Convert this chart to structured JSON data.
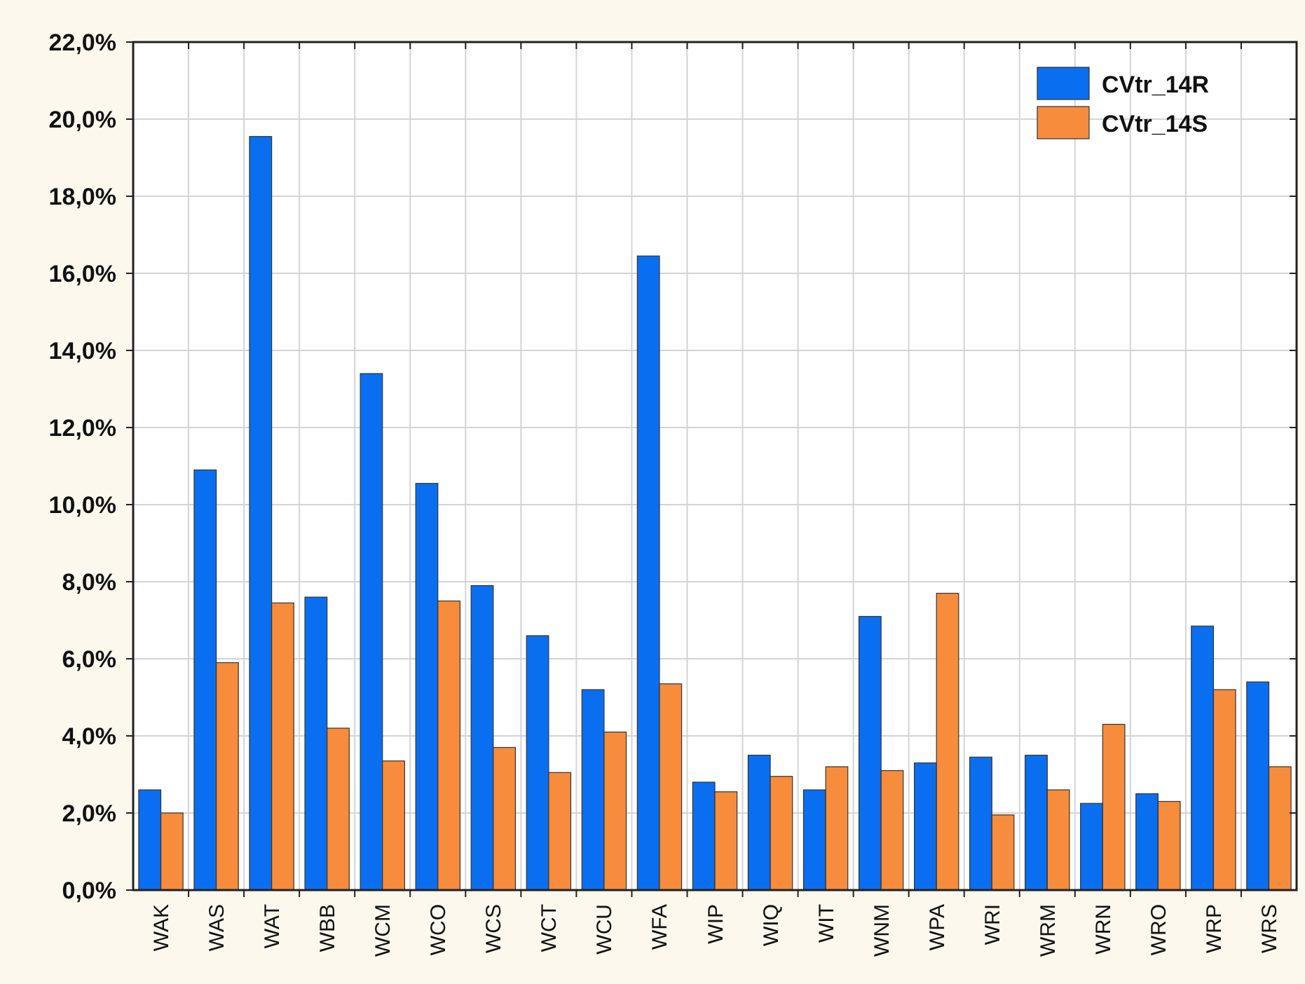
{
  "chart_data": {
    "type": "bar",
    "categories": [
      "WAK",
      "WAS",
      "WAT",
      "WBB",
      "WCM",
      "WCO",
      "WCS",
      "WCT",
      "WCU",
      "WFA",
      "WIP",
      "WIQ",
      "WIT",
      "WNM",
      "WPA",
      "WRI",
      "WRM",
      "WRN",
      "WRO",
      "WRP",
      "WRS"
    ],
    "series": [
      {
        "name": "CVtr_14R",
        "color": "#0a6ef0",
        "values": [
          2.6,
          10.9,
          19.55,
          7.6,
          13.4,
          10.55,
          7.9,
          6.6,
          5.2,
          16.45,
          2.8,
          3.5,
          2.6,
          7.1,
          3.3,
          3.45,
          3.5,
          2.25,
          2.5,
          6.85,
          5.4
        ]
      },
      {
        "name": "CVtr_14S",
        "color": "#f68c3c",
        "values": [
          2.0,
          5.9,
          7.45,
          4.2,
          3.35,
          7.5,
          3.7,
          3.05,
          4.1,
          5.35,
          2.55,
          2.95,
          3.2,
          3.1,
          7.7,
          1.95,
          2.6,
          4.3,
          2.3,
          5.2,
          3.2
        ]
      }
    ],
    "ylim": [
      0,
      22
    ],
    "yticks": [
      {
        "value": 0,
        "label": "0,0%"
      },
      {
        "value": 2,
        "label": "2,0%"
      },
      {
        "value": 4,
        "label": "4,0%"
      },
      {
        "value": 6,
        "label": "6,0%"
      },
      {
        "value": 8,
        "label": "8,0%"
      },
      {
        "value": 10,
        "label": "10,0%"
      },
      {
        "value": 12,
        "label": "12,0%"
      },
      {
        "value": 14,
        "label": "14,0%"
      },
      {
        "value": 16,
        "label": "16,0%"
      },
      {
        "value": 18,
        "label": "18,0%"
      },
      {
        "value": 20,
        "label": "20,0%"
      },
      {
        "value": 22,
        "label": "22,0%"
      }
    ],
    "grid": true,
    "legend": "top right"
  }
}
